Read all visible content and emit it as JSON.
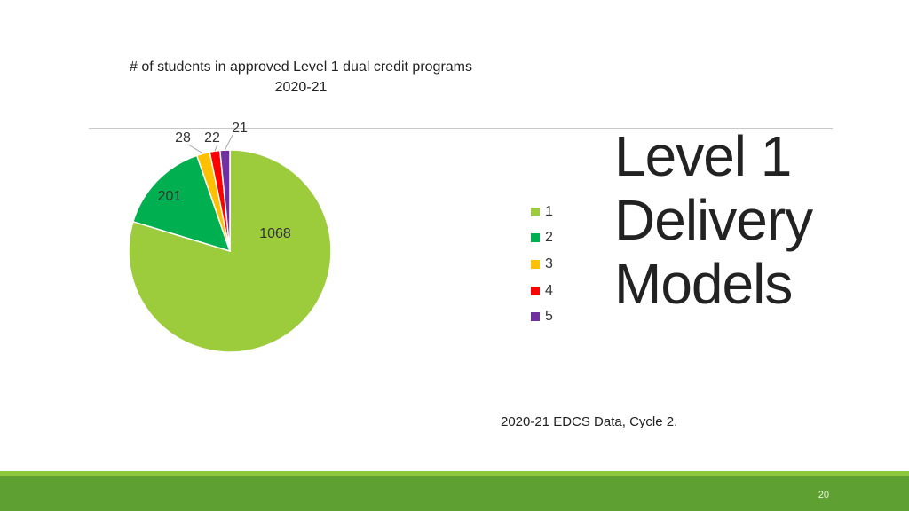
{
  "chart_data": {
    "type": "pie",
    "title": "# of students in approved Level 1 dual credit programs",
    "subtitle": "2020-21",
    "categories": [
      "1",
      "2",
      "3",
      "4",
      "5"
    ],
    "values": [
      1068,
      201,
      28,
      22,
      21
    ],
    "colors": [
      "#9ccb3b",
      "#00b050",
      "#ffc000",
      "#ff0000",
      "#7030a0"
    ],
    "data_labels": [
      "1068",
      "201",
      "28",
      "22",
      "21"
    ],
    "legend_position": "right"
  },
  "slide": {
    "title_lines": [
      "Level 1",
      "Delivery",
      "Models"
    ],
    "source": "2020-21 EDCS Data, Cycle 2.",
    "page_number": "20"
  }
}
